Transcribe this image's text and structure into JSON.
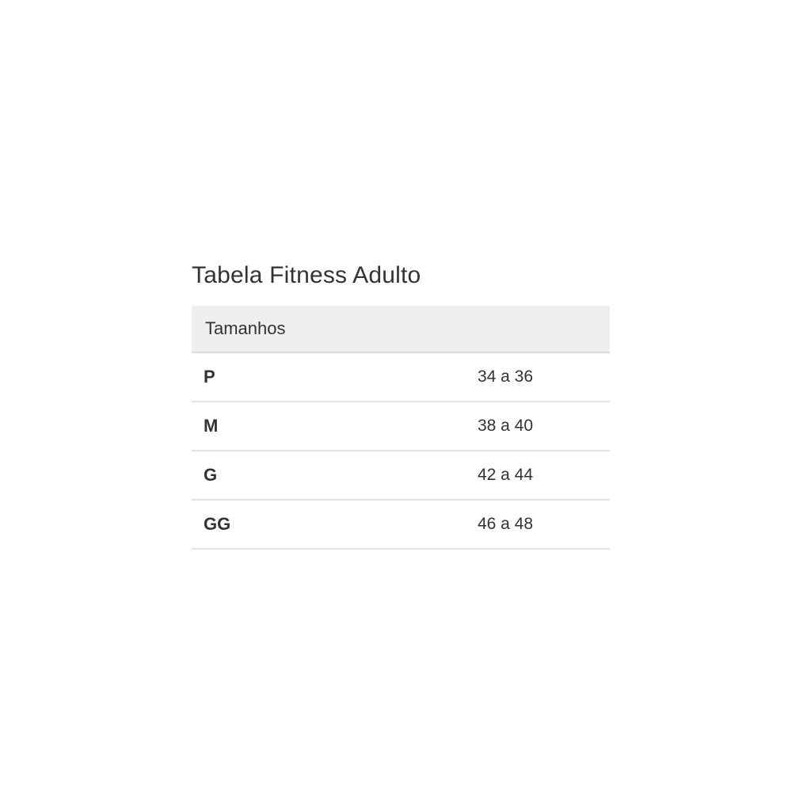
{
  "page": {
    "background": "#ffffff"
  },
  "size_chart": {
    "title": "Tabela Fitness Adulto",
    "header_label": "Tamanhos",
    "rows": [
      {
        "label": "P",
        "value": "34 a 36"
      },
      {
        "label": "M",
        "value": "38 a 40"
      },
      {
        "label": "G",
        "value": "42 a 44"
      },
      {
        "label": "GG",
        "value": "46 a 48"
      }
    ],
    "colors": {
      "header_bg": "#efefef",
      "divider": "#e2e2e2",
      "divider_strong": "#dcdcdc",
      "text": "#333333"
    }
  }
}
